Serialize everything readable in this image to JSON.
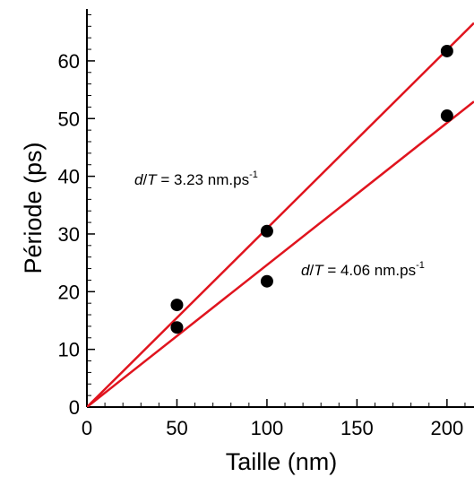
{
  "chart_data": {
    "type": "scatter",
    "xlabel": "Taille (nm)",
    "ylabel": "Période (ps)",
    "xlim": [
      0,
      215
    ],
    "ylim": [
      0,
      69
    ],
    "xticks": [
      0,
      50,
      100,
      150,
      200
    ],
    "xtick_labels": [
      "0",
      "50",
      "100",
      "150",
      "200"
    ],
    "yticks": [
      0,
      10,
      20,
      30,
      40,
      50,
      60
    ],
    "ytick_labels": [
      "0",
      "10",
      "20",
      "30",
      "40",
      "50",
      "60"
    ],
    "grid": false,
    "points": [
      {
        "x": 50,
        "y": 17.7
      },
      {
        "x": 50,
        "y": 13.8
      },
      {
        "x": 100,
        "y": 30.5
      },
      {
        "x": 100,
        "y": 21.8
      },
      {
        "x": 200,
        "y": 61.7
      },
      {
        "x": 200,
        "y": 50.5
      }
    ],
    "fit_lines": [
      {
        "slope": 0.3096,
        "color": "#e0141e",
        "annotation": {
          "italic_a": "d",
          "slash": "/",
          "italic_b": "T",
          "text": " = 3.23 nm.ps",
          "sup": "-1"
        }
      },
      {
        "slope": 0.2463,
        "color": "#e0141e",
        "annotation": {
          "italic_a": "d",
          "slash": "/",
          "italic_b": "T",
          "text": " = 4.06 nm.ps",
          "sup": "-1"
        }
      }
    ],
    "marker_color": "#000000"
  }
}
